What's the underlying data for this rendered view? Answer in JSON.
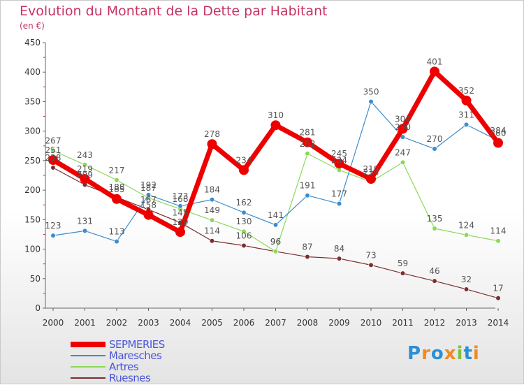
{
  "title": "Evolution du Montant de la Dette par Habitant",
  "subtitle": "(en €)",
  "chart_data": {
    "type": "line",
    "x": [
      "2000",
      "2001",
      "2002",
      "2003",
      "2004",
      "2005",
      "2006",
      "2007",
      "2008",
      "2009",
      "2010",
      "2011",
      "2012",
      "2013",
      "2014"
    ],
    "ylim": [
      0,
      450
    ],
    "yticks": [
      "0",
      "50",
      "100",
      "150",
      "200",
      "250",
      "300",
      "350",
      "400",
      "450"
    ],
    "grid": false,
    "legend_position": "bottom-left",
    "series": [
      {
        "name": "SEPMERIES",
        "color": "#ee0000",
        "values": [
          251,
          219,
          185,
          158,
          129,
          278,
          234,
          310,
          281,
          245,
          219,
          304,
          401,
          352,
          280
        ]
      },
      {
        "name": "Maresches",
        "color": "#3d8ccc",
        "values": [
          123,
          131,
          113,
          192,
          173,
          184,
          162,
          141,
          191,
          177,
          350,
          290,
          270,
          311,
          284
        ]
      },
      {
        "name": "Artres",
        "color": "#8cd859",
        "values": [
          267,
          243,
          217,
          187,
          168,
          149,
          130,
          96,
          262,
          234,
          214,
          247,
          135,
          124,
          114
        ]
      },
      {
        "name": "Ruesnes",
        "color": "#7a2e2e",
        "values": [
          238,
          209,
          188,
          167,
          145,
          114,
          106,
          96,
          87,
          84,
          73,
          59,
          46,
          32,
          17
        ]
      }
    ]
  },
  "logo": {
    "letters": [
      "P",
      "r",
      "o",
      "x",
      "i",
      "t",
      "i"
    ],
    "colors": [
      "#2b8fd6",
      "#f28a1d",
      "#2b8fd6",
      "#f28a1d",
      "#7cc242",
      "#2b8fd6",
      "#f28a1d"
    ]
  }
}
